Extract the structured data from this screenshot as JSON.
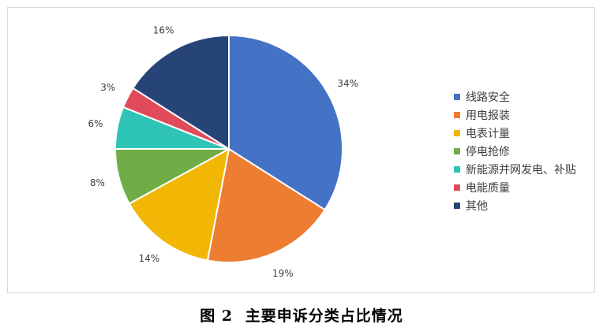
{
  "chart_data": {
    "type": "pie",
    "categories": [
      "线路安全",
      "用电报装",
      "电表计量",
      "停电抢修",
      "新能源并网发电、补贴",
      "电能质量",
      "其他"
    ],
    "values": [
      34,
      19,
      14,
      8,
      6,
      3,
      16
    ],
    "labels": [
      "34%",
      "19%",
      "14%",
      "8%",
      "6%",
      "3%",
      "16%"
    ],
    "colors": [
      "#4472C4",
      "#ED7D31",
      "#F2B705",
      "#70AD47",
      "#2EC4B6",
      "#E04B5B",
      "#264478"
    ],
    "legend_position": "right"
  },
  "caption": {
    "figure_label": "图 2",
    "title": "主要申诉分类占比情况"
  }
}
